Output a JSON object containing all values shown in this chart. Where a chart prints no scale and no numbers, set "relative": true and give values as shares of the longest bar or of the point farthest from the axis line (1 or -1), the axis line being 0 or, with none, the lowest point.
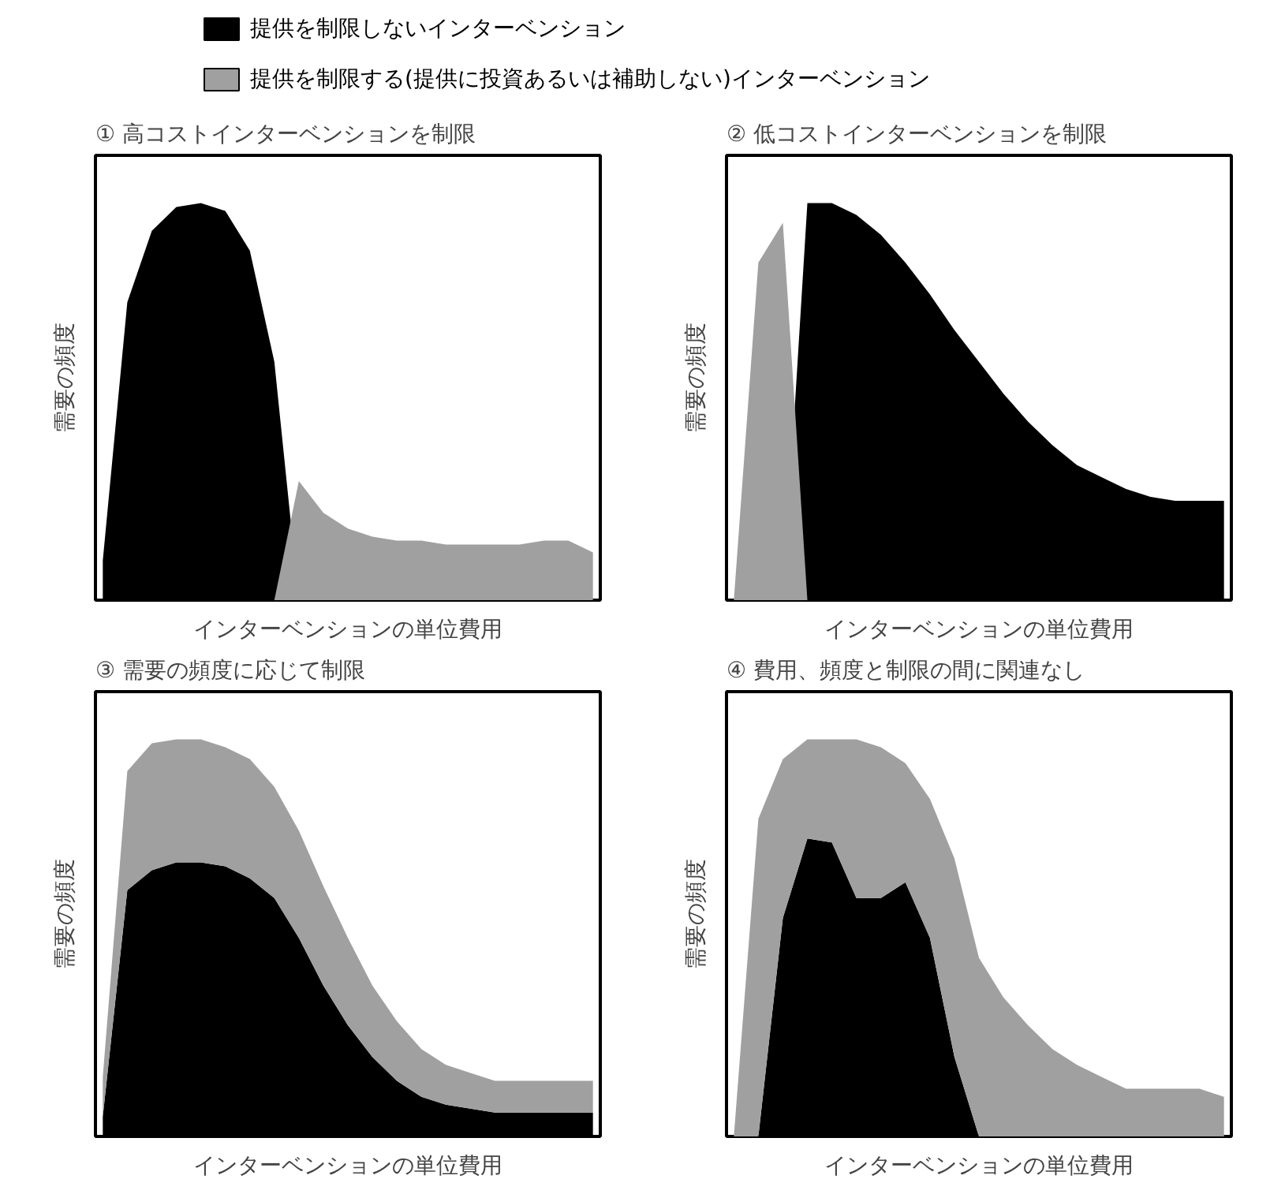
{
  "chart_data": [
    {
      "type": "area",
      "relative": true,
      "title": "① 高コストインターベンションを制限",
      "xlabel": "インターベンションの単位費用",
      "ylabel": "需要の頻度",
      "tick_labels": false,
      "grid": false,
      "legend": "top",
      "categories": [
        null,
        null,
        null,
        null,
        null,
        null,
        null,
        null,
        null,
        null,
        null,
        null,
        null,
        null,
        null,
        null,
        null,
        null,
        null,
        null,
        null
      ],
      "series": [
        {
          "name": "提供を制限しないインターベンション",
          "color": "#000000",
          "values": [
            0.1,
            0.75,
            0.93,
            0.99,
            1.0,
            0.98,
            0.88,
            0.6,
            0,
            0,
            0,
            0,
            0,
            0,
            0,
            0,
            0,
            0,
            0,
            0,
            0
          ]
        },
        {
          "name": "提供を制限する(提供に投資あるいは補助しない)インターベンション",
          "color": "#a0a0a0",
          "values": [
            0,
            0,
            0,
            0,
            0,
            0,
            0,
            0,
            0.3,
            0.22,
            0.18,
            0.16,
            0.15,
            0.15,
            0.14,
            0.14,
            0.14,
            0.14,
            0.15,
            0.15,
            0.12
          ]
        }
      ]
    },
    {
      "type": "area",
      "relative": true,
      "title": "② 低コストインターベンションを制限",
      "xlabel": "インターベンションの単位費用",
      "ylabel": "需要の頻度",
      "tick_labels": false,
      "grid": false,
      "categories": [
        null,
        null,
        null,
        null,
        null,
        null,
        null,
        null,
        null,
        null,
        null,
        null,
        null,
        null,
        null,
        null,
        null,
        null,
        null,
        null,
        null
      ],
      "series": [
        {
          "color": "#000000",
          "values": [
            0,
            0,
            0,
            1.0,
            1.0,
            0.97,
            0.92,
            0.85,
            0.77,
            0.68,
            0.6,
            0.52,
            0.45,
            0.39,
            0.34,
            0.31,
            0.28,
            0.26,
            0.25,
            0.25,
            0.25
          ]
        },
        {
          "color": "#a0a0a0",
          "values": [
            0,
            0.85,
            0.95,
            0,
            0,
            0,
            0,
            0,
            0,
            0,
            0,
            0,
            0,
            0,
            0,
            0,
            0,
            0,
            0,
            0,
            0
          ]
        }
      ]
    },
    {
      "type": "area",
      "stacked": true,
      "relative": true,
      "title": "③ 需要の頻度に応じて制限",
      "xlabel": "インターベンションの単位費用",
      "ylabel": "需要の頻度",
      "tick_labels": false,
      "grid": false,
      "categories": [
        null,
        null,
        null,
        null,
        null,
        null,
        null,
        null,
        null,
        null,
        null,
        null,
        null,
        null,
        null,
        null,
        null,
        null,
        null,
        null,
        null
      ],
      "series": [
        {
          "color": "#000000",
          "values": [
            0.05,
            0.62,
            0.67,
            0.69,
            0.69,
            0.68,
            0.65,
            0.6,
            0.5,
            0.38,
            0.28,
            0.2,
            0.14,
            0.1,
            0.08,
            0.07,
            0.06,
            0.06,
            0.06,
            0.06,
            0.06
          ]
        },
        {
          "color": "#a0a0a0",
          "values": [
            0.1,
            0.3,
            0.32,
            0.31,
            0.31,
            0.3,
            0.3,
            0.28,
            0.27,
            0.25,
            0.22,
            0.18,
            0.15,
            0.12,
            0.1,
            0.09,
            0.08,
            0.08,
            0.08,
            0.08,
            0.08
          ]
        }
      ]
    },
    {
      "type": "area",
      "stacked": true,
      "relative": true,
      "title": "④ 費用、頻度と制限の間に関連なし",
      "xlabel": "インターベンションの単位費用",
      "ylabel": "需要の頻度",
      "tick_labels": false,
      "grid": false,
      "categories": [
        null,
        null,
        null,
        null,
        null,
        null,
        null,
        null,
        null,
        null,
        null,
        null,
        null,
        null,
        null,
        null,
        null,
        null,
        null,
        null,
        null
      ],
      "series": [
        {
          "color": "#000000",
          "values": [
            0,
            0,
            0.55,
            0.75,
            0.74,
            0.6,
            0.6,
            0.64,
            0.5,
            0.2,
            0,
            0,
            0,
            0,
            0,
            0,
            0,
            0,
            0,
            0,
            0
          ]
        },
        {
          "color": "#a0a0a0",
          "values": [
            0,
            0.8,
            0.4,
            0.25,
            0.26,
            0.4,
            0.38,
            0.3,
            0.35,
            0.5,
            0.45,
            0.35,
            0.28,
            0.22,
            0.18,
            0.15,
            0.12,
            0.12,
            0.12,
            0.12,
            0.1
          ]
        }
      ]
    }
  ]
}
